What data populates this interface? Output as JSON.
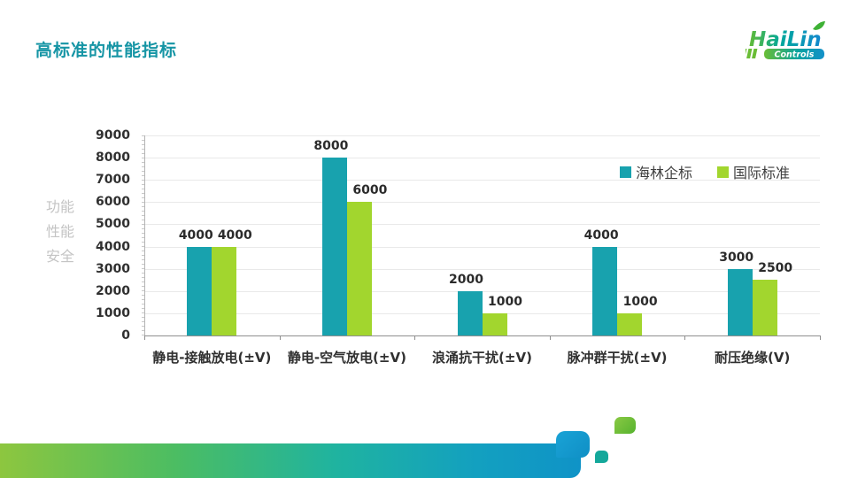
{
  "slide": {
    "title": "高标准的性能指标",
    "side_labels": [
      "功能",
      "性能",
      "安全"
    ]
  },
  "logo": {
    "word": "HaiLin",
    "sub": "Controls"
  },
  "colors": {
    "title": "#1695a5",
    "series1": "#18a2ae",
    "series2": "#a2d62e",
    "axis_text": "#303030",
    "side_label_gray": "#c4c4c4",
    "gridline": "#e9e9e9",
    "bottom_gradient": [
      "#8dc63f",
      "#1fb3a0",
      "#0f93c7"
    ]
  },
  "chart_data": {
    "type": "bar",
    "categories": [
      "静电-接触放电(±V)",
      "静电-空气放电(±V)",
      "浪涌抗干扰(±V)",
      "脉冲群干扰(±V)",
      "耐压绝缘(V)"
    ],
    "series": [
      {
        "name": "海林企标",
        "color": "#18a2ae",
        "values": [
          4000,
          8000,
          2000,
          4000,
          3000
        ]
      },
      {
        "name": "国际标准",
        "color": "#a2d62e",
        "values": [
          4000,
          6000,
          1000,
          1000,
          2500
        ]
      }
    ],
    "title": "",
    "xlabel": "",
    "ylabel": "",
    "ylim": [
      0,
      9000
    ],
    "ytick_step": 1000,
    "grid": true,
    "legend_position": "top-right",
    "data_labels": true
  }
}
